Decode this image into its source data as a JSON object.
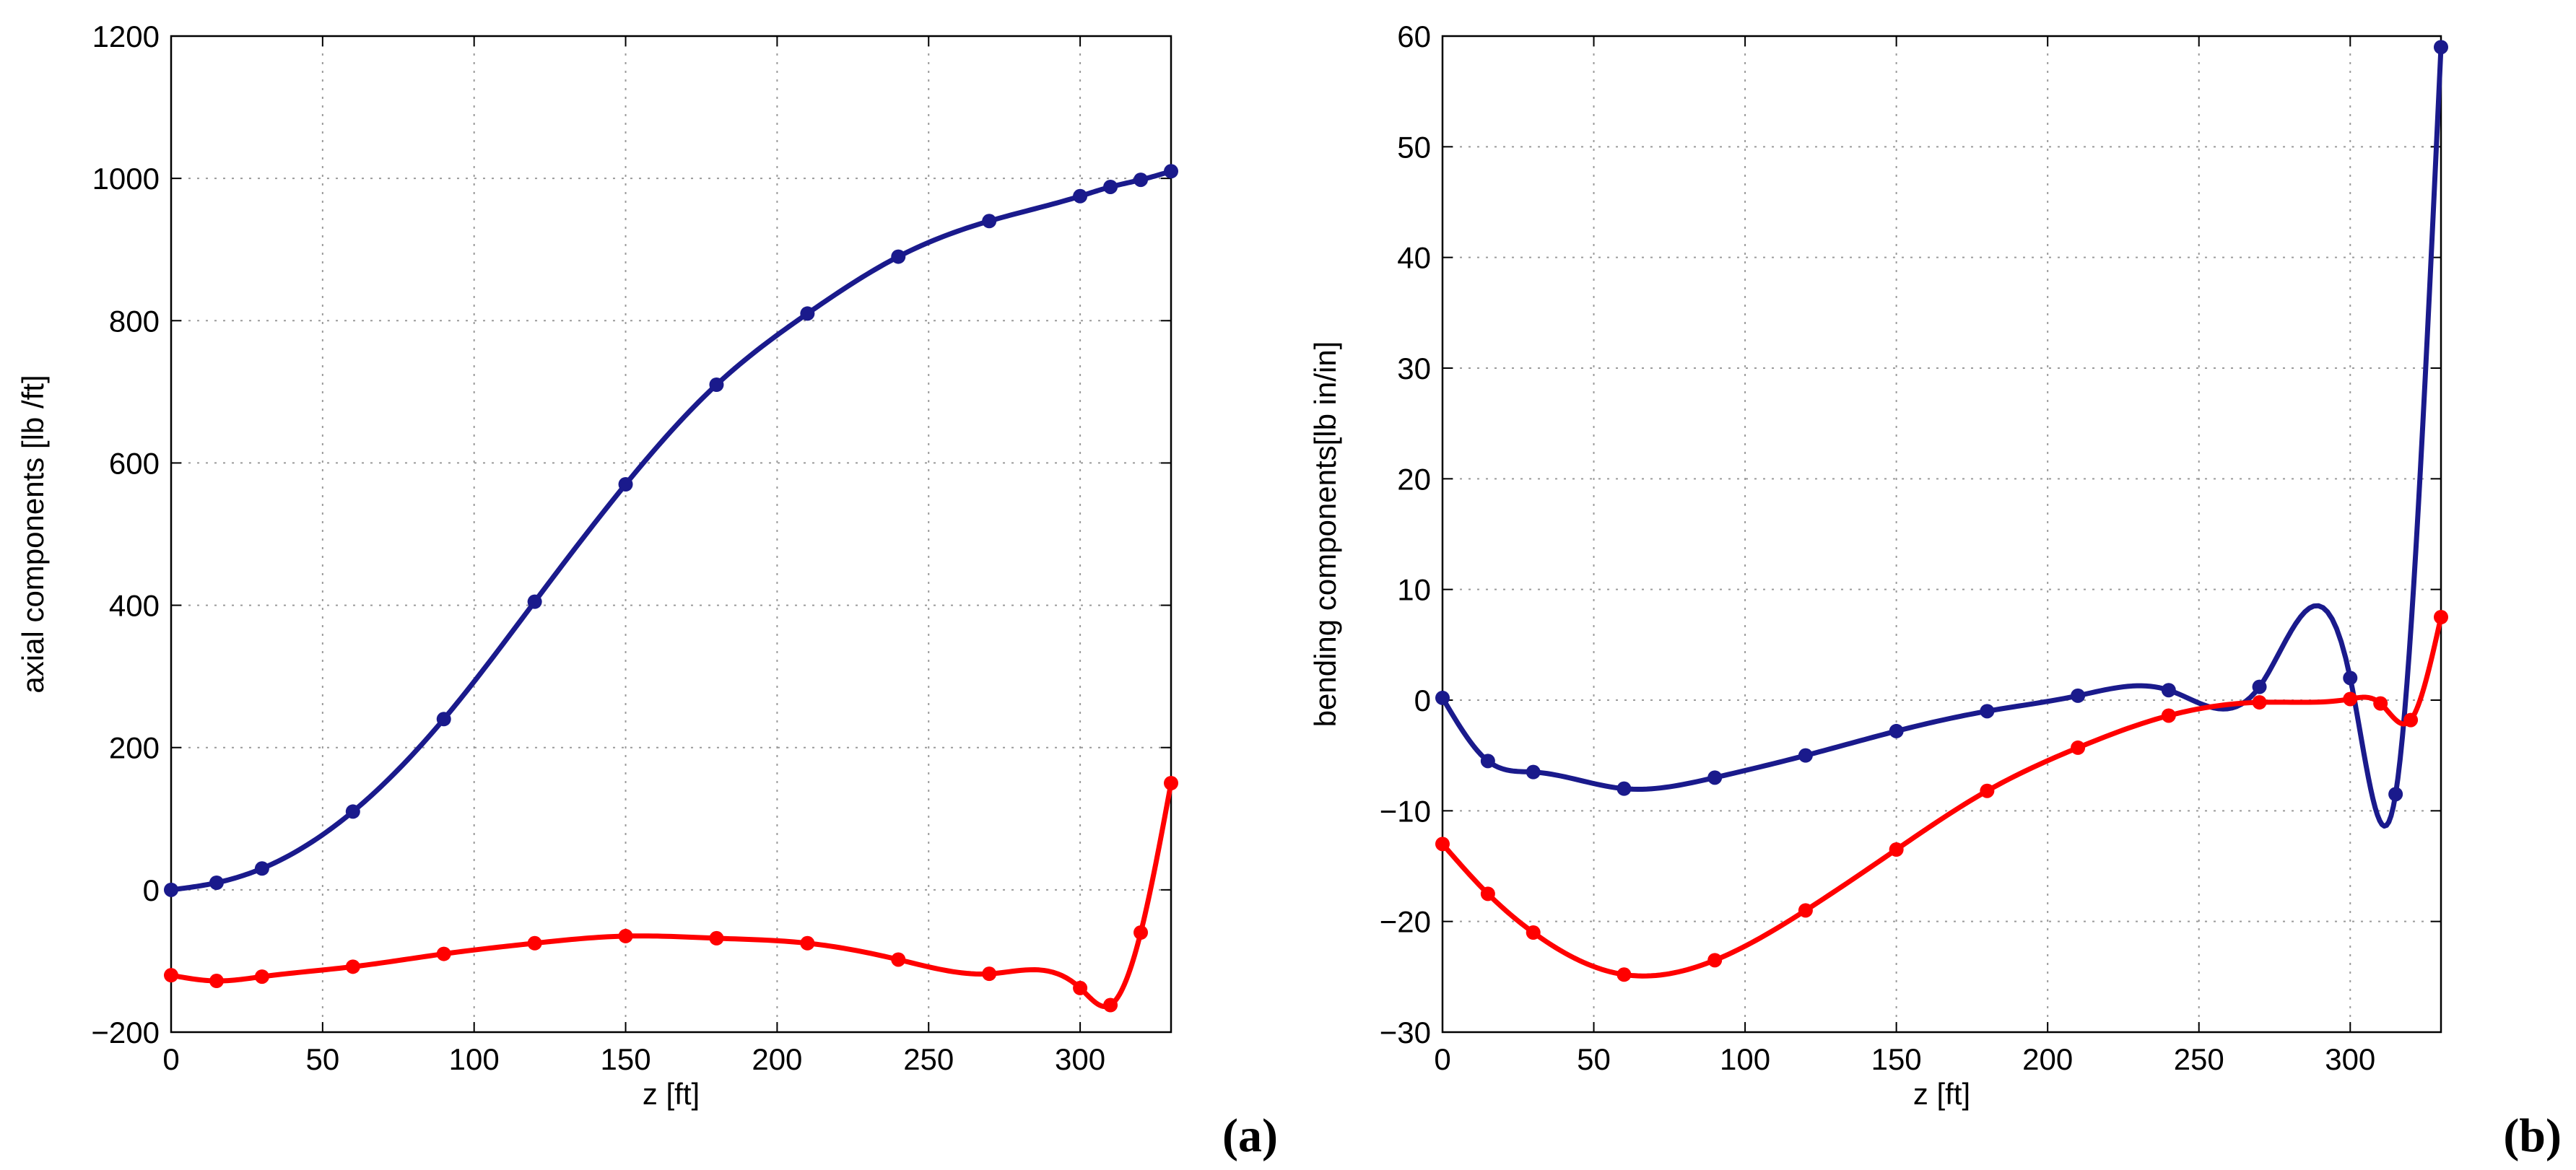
{
  "chart_data": [
    {
      "type": "line",
      "panel_label": "(a)",
      "xlabel": "z [ft]",
      "ylabel": "axial components [lb /ft]",
      "xlim": [
        0,
        330
      ],
      "ylim": [
        -200,
        1200
      ],
      "xticks": [
        0,
        50,
        100,
        150,
        200,
        250,
        300
      ],
      "yticks": [
        -200,
        0,
        200,
        400,
        600,
        800,
        1000,
        1200
      ],
      "xtick_labels": [
        "0",
        "50",
        "100",
        "150",
        "200",
        "250",
        "300"
      ],
      "ytick_labels": [
        "−200",
        "0",
        "200",
        "400",
        "600",
        "800",
        "1000",
        "1200"
      ],
      "grid": true,
      "series": [
        {
          "name": "blue",
          "color": "#1a1a8c",
          "x": [
            0,
            15,
            30,
            60,
            90,
            120,
            150,
            180,
            210,
            240,
            270,
            300,
            310,
            320,
            330
          ],
          "y": [
            0,
            10,
            30,
            110,
            240,
            405,
            570,
            710,
            810,
            890,
            940,
            975,
            988,
            998,
            1010
          ]
        },
        {
          "name": "red",
          "color": "#ff0000",
          "x": [
            0,
            15,
            30,
            60,
            90,
            120,
            150,
            180,
            210,
            240,
            270,
            300,
            310,
            320,
            330
          ],
          "y": [
            -120,
            -128,
            -122,
            -108,
            -90,
            -75,
            -65,
            -68,
            -75,
            -98,
            -118,
            -138,
            -162,
            -60,
            150
          ]
        }
      ]
    },
    {
      "type": "line",
      "panel_label": "(b)",
      "xlabel": "z [ft]",
      "ylabel": "bending components[lb in/in]",
      "xlim": [
        0,
        330
      ],
      "ylim": [
        -30,
        60
      ],
      "xticks": [
        0,
        50,
        100,
        150,
        200,
        250,
        300
      ],
      "yticks": [
        -30,
        -20,
        -10,
        0,
        10,
        20,
        30,
        40,
        50,
        60
      ],
      "xtick_labels": [
        "0",
        "50",
        "100",
        "150",
        "200",
        "250",
        "300"
      ],
      "ytick_labels": [
        "−30",
        "−20",
        "−10",
        "0",
        "10",
        "20",
        "30",
        "40",
        "50",
        "60"
      ],
      "grid": true,
      "series": [
        {
          "name": "blue",
          "color": "#1a1a8c",
          "x": [
            0,
            15,
            30,
            60,
            90,
            120,
            150,
            180,
            210,
            240,
            270,
            300,
            315,
            330
          ],
          "y": [
            0.2,
            -5.5,
            -6.5,
            -8,
            -7,
            -5,
            -2.8,
            -1,
            0.4,
            0.9,
            1.2,
            2,
            -8.5,
            59
          ]
        },
        {
          "name": "red",
          "color": "#ff0000",
          "x": [
            0,
            15,
            30,
            60,
            90,
            120,
            150,
            180,
            210,
            240,
            270,
            300,
            310,
            320,
            330
          ],
          "y": [
            -13,
            -17.5,
            -21,
            -24.8,
            -23.5,
            -19,
            -13.5,
            -8.2,
            -4.3,
            -1.4,
            -0.2,
            0.1,
            -0.3,
            -1.8,
            7.5
          ]
        }
      ]
    }
  ]
}
